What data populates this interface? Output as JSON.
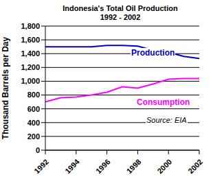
{
  "chart_data": {
    "type": "line",
    "title": "Indonesia's Total Oil Production\n1992 - 2002",
    "y_label": "Thousand Barrels per Day",
    "annotations": [
      "Source: EIA"
    ],
    "x": [
      1992,
      1993,
      1994,
      1995,
      1996,
      1997,
      1998,
      1999,
      2000,
      2001,
      2002
    ],
    "series": [
      {
        "name": "Production",
        "color": "#0000cc",
        "values": [
          1500,
          1500,
          1500,
          1500,
          1520,
          1520,
          1510,
          1450,
          1420,
          1360,
          1330
        ]
      },
      {
        "name": "Consumption",
        "color": "#ff00ff",
        "values": [
          700,
          760,
          770,
          800,
          840,
          920,
          900,
          960,
          1030,
          1040,
          1040
        ]
      }
    ],
    "xlim": [
      1992,
      2002
    ],
    "xticks": [
      1992,
      1994,
      1996,
      1998,
      2000,
      2002
    ],
    "ylim": [
      0,
      1800
    ],
    "yticks": [
      0,
      200,
      400,
      600,
      800,
      {
        "value": 1000,
        "label": "1,000"
      },
      {
        "value": 1200,
        "label": "1,200"
      },
      {
        "value": 1400,
        "label": "1,400"
      },
      {
        "value": 1600,
        "label": "1,600"
      },
      {
        "value": 1800,
        "label": "1,800"
      }
    ],
    "grid": true
  }
}
